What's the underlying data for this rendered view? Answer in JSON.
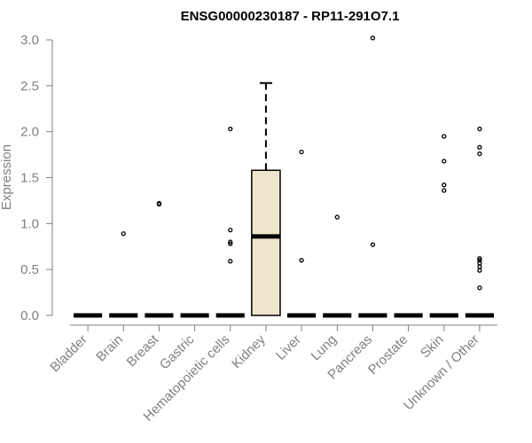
{
  "chart_data": {
    "type": "box",
    "title": "ENSG00000230187 - RP11-291O7.1",
    "xlabel": "",
    "ylabel": "Expression",
    "ylim": [
      0,
      3.0
    ],
    "yticks": [
      "0.0",
      "0.5",
      "1.0",
      "1.5",
      "2.0",
      "2.5",
      "3.0"
    ],
    "categories": [
      "Bladder",
      "Brain",
      "Breast",
      "Gastric",
      "Hematopoietic cells",
      "Kidney",
      "Liver",
      "Lung",
      "Pancreas",
      "Prostate",
      "Skin",
      "Unknown / Other"
    ],
    "series": [
      {
        "category": "Bladder",
        "q1": 0,
        "median": 0,
        "q3": 0,
        "whisker_low": 0,
        "whisker_high": 0,
        "outliers": []
      },
      {
        "category": "Brain",
        "q1": 0,
        "median": 0,
        "q3": 0,
        "whisker_low": 0,
        "whisker_high": 0,
        "outliers": [
          0.89
        ]
      },
      {
        "category": "Breast",
        "q1": 0,
        "median": 0,
        "q3": 0,
        "whisker_low": 0,
        "whisker_high": 0,
        "outliers": [
          1.21,
          1.22
        ]
      },
      {
        "category": "Gastric",
        "q1": 0,
        "median": 0,
        "q3": 0,
        "whisker_low": 0,
        "whisker_high": 0,
        "outliers": []
      },
      {
        "category": "Hematopoietic cells",
        "q1": 0,
        "median": 0,
        "q3": 0,
        "whisker_low": 0,
        "whisker_high": 0,
        "outliers": [
          2.03,
          0.93,
          0.8,
          0.78,
          0.59
        ]
      },
      {
        "category": "Kidney",
        "q1": 0,
        "median": 0.86,
        "q3": 1.58,
        "whisker_low": 0,
        "whisker_high": 2.53,
        "outliers": []
      },
      {
        "category": "Liver",
        "q1": 0,
        "median": 0,
        "q3": 0,
        "whisker_low": 0,
        "whisker_high": 0,
        "outliers": [
          1.78,
          0.6
        ]
      },
      {
        "category": "Lung",
        "q1": 0,
        "median": 0,
        "q3": 0,
        "whisker_low": 0,
        "whisker_high": 0,
        "outliers": [
          1.07
        ]
      },
      {
        "category": "Pancreas",
        "q1": 0,
        "median": 0,
        "q3": 0,
        "whisker_low": 0,
        "whisker_high": 0,
        "outliers": [
          3.02,
          0.77
        ]
      },
      {
        "category": "Prostate",
        "q1": 0,
        "median": 0,
        "q3": 0,
        "whisker_low": 0,
        "whisker_high": 0,
        "outliers": []
      },
      {
        "category": "Skin",
        "q1": 0,
        "median": 0,
        "q3": 0,
        "whisker_low": 0,
        "whisker_high": 0,
        "outliers": [
          1.95,
          1.68,
          1.42,
          1.36
        ]
      },
      {
        "category": "Unknown / Other",
        "q1": 0,
        "median": 0,
        "q3": 0,
        "whisker_low": 0,
        "whisker_high": 0,
        "outliers": [
          2.03,
          1.83,
          1.76,
          0.62,
          0.6,
          0.57,
          0.53,
          0.49,
          0.3
        ]
      }
    ],
    "colors": {
      "box_fill": "#ede6cd",
      "box_stroke": "#000000",
      "axis": "#808080",
      "text": "#808080"
    },
    "grid": false,
    "legend": "none"
  }
}
